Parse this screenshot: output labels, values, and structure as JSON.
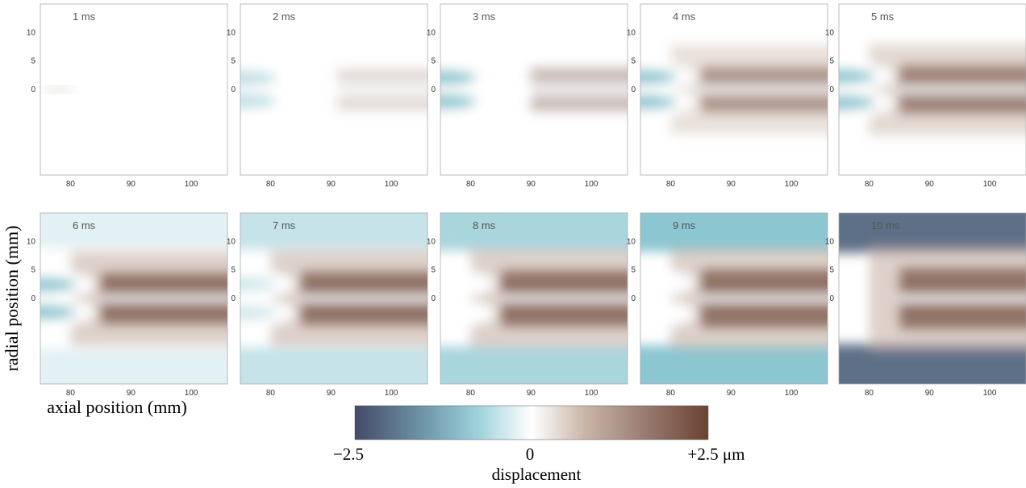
{
  "panels": [
    {
      "label": "1 ms"
    },
    {
      "label": "2 ms"
    },
    {
      "label": "3 ms"
    },
    {
      "label": "4 ms"
    },
    {
      "label": "5 ms"
    },
    {
      "label": "6 ms"
    },
    {
      "label": "7 ms"
    },
    {
      "label": "8 ms"
    },
    {
      "label": "9 ms"
    },
    {
      "label": "10 ms"
    }
  ],
  "xlim": [
    75,
    106
  ],
  "ylim": [
    -15,
    15
  ],
  "xticks": [
    80,
    90,
    100
  ],
  "yticks": [
    10,
    5,
    0
  ],
  "xlabel": "axial position  (mm)",
  "ylabel": "radial position  (mm)",
  "colorbar": {
    "labels": [
      "−2.5",
      "0",
      "+2.5 μm"
    ],
    "title": "displacement"
  }
}
